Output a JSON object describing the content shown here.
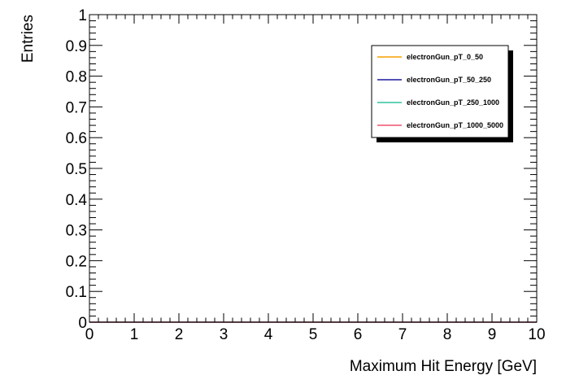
{
  "chart_data": {
    "type": "line",
    "title": "",
    "xlabel": "Maximum Hit Energy [GeV]",
    "ylabel": "Entries",
    "xlim": [
      0,
      10
    ],
    "ylim": [
      0,
      1
    ],
    "x_ticks": [
      "0",
      "1",
      "2",
      "3",
      "4",
      "5",
      "6",
      "7",
      "8",
      "9",
      "10"
    ],
    "y_ticks": [
      "0",
      "0.1",
      "0.2",
      "0.3",
      "0.4",
      "0.5",
      "0.6",
      "0.7",
      "0.8",
      "0.9",
      "1"
    ],
    "grid": false,
    "legend_position": "top-right",
    "series": [
      {
        "name": "electronGun_pT_0_50",
        "color": "#f5a000",
        "x": [
          0,
          10
        ],
        "y": [
          0,
          0
        ]
      },
      {
        "name": "electronGun_pT_50_250",
        "color": "#1a1aa0",
        "x": [
          0,
          10
        ],
        "y": [
          0,
          0
        ]
      },
      {
        "name": "electronGun_pT_250_1000",
        "color": "#2ec4a0",
        "x": [
          0,
          10
        ],
        "y": [
          0,
          0
        ]
      },
      {
        "name": "electronGun_pT_1000_5000",
        "color": "#f0506e",
        "x": [
          0,
          10
        ],
        "y": [
          0,
          0
        ]
      }
    ]
  }
}
